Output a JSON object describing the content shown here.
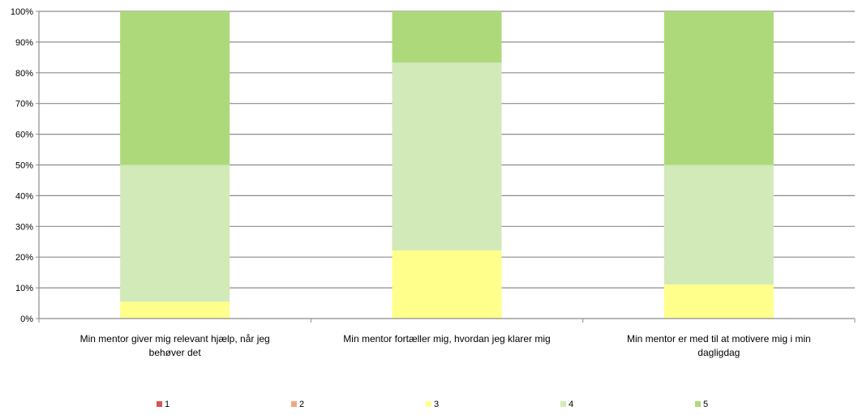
{
  "chart_data": {
    "type": "bar",
    "stacked": true,
    "percent_stacked": true,
    "categories": [
      [
        "Min mentor giver mig relevant hjælp, når jeg",
        "behøver det"
      ],
      [
        "Min mentor fortæller mig, hvordan jeg klarer mig"
      ],
      [
        "Min mentor er med til at motivere mig i min",
        "dagligdag"
      ]
    ],
    "series": [
      {
        "name": "1",
        "color": "#d9534f",
        "values": [
          0,
          0,
          0
        ]
      },
      {
        "name": "2",
        "color": "#f4a582",
        "values": [
          0,
          0,
          0
        ]
      },
      {
        "name": "3",
        "color": "#ffff8c",
        "values": [
          5.5,
          22.2,
          11.1
        ]
      },
      {
        "name": "4",
        "color": "#d1eab8",
        "values": [
          44.5,
          61.1,
          38.9
        ]
      },
      {
        "name": "5",
        "color": "#aed97a",
        "values": [
          50,
          16.7,
          50
        ]
      }
    ],
    "yticks": [
      "0%",
      "10%",
      "20%",
      "30%",
      "40%",
      "50%",
      "60%",
      "70%",
      "80%",
      "90%",
      "100%"
    ],
    "ylim": [
      0,
      100
    ],
    "grid": true,
    "legend": "bottom",
    "title": "",
    "xlabel": "",
    "ylabel": ""
  }
}
